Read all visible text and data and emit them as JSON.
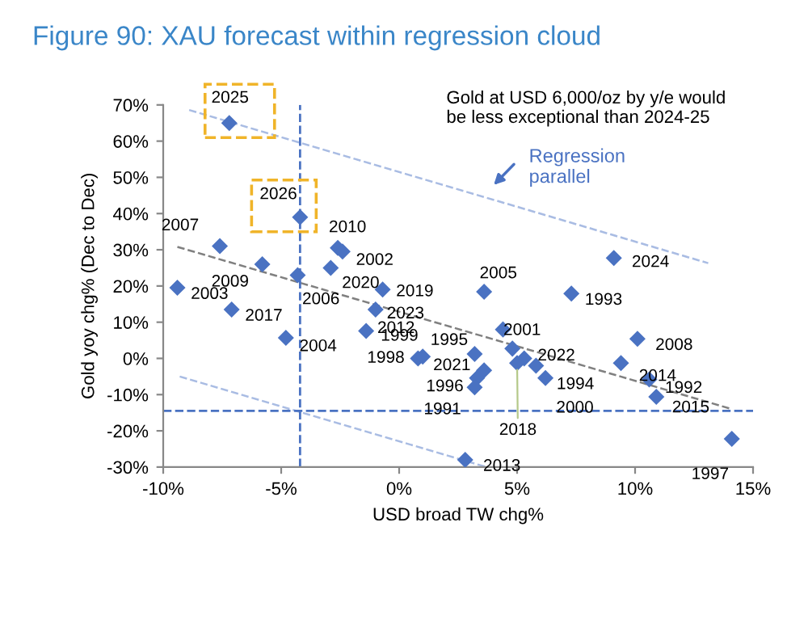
{
  "chart_data": {
    "type": "scatter",
    "title": "Figure 90: XAU forecast within regression cloud",
    "xlabel": "USD broad TW chg%",
    "ylabel": "Gold yoy chg% (Dec to Dec)",
    "xlim": [
      -10,
      15
    ],
    "xticks": [
      {
        "value": -10,
        "label": "-10%"
      },
      {
        "value": -5,
        "label": "-5%"
      },
      {
        "value": 0,
        "label": "0%"
      },
      {
        "value": 5,
        "label": "5%"
      },
      {
        "value": 10,
        "label": "10%"
      },
      {
        "value": 15,
        "label": "15%"
      }
    ],
    "ylim": [
      -30,
      70
    ],
    "yticks": [
      {
        "value": -30,
        "label": "-30%"
      },
      {
        "value": -20,
        "label": "-20%"
      },
      {
        "value": -10,
        "label": "-10%"
      },
      {
        "value": 0,
        "label": "0%"
      },
      {
        "value": 10,
        "label": "10%"
      },
      {
        "value": 20,
        "label": "20%"
      },
      {
        "value": 30,
        "label": "30%"
      },
      {
        "value": 40,
        "label": "40%"
      },
      {
        "value": 50,
        "label": "50%"
      },
      {
        "value": 60,
        "label": "60%"
      },
      {
        "value": 70,
        "label": "70%"
      }
    ],
    "grid": false,
    "legend": false,
    "series": [
      {
        "color": "#4a72c2",
        "marker": "diamond",
        "x": [
          -7.2,
          -4.2,
          -7.6,
          -2.6,
          -2.4,
          -5.8,
          -4.3,
          -2.9,
          -9.4,
          -0.7,
          -7.1,
          -1.0,
          -4.8,
          -1.4,
          4.4,
          3.6,
          7.3,
          0.8,
          1.0,
          3.2,
          4.8,
          5.3,
          5.0,
          5.8,
          6.2,
          3.6,
          3.3,
          3.2,
          9.1,
          10.1,
          9.4,
          10.6,
          10.9,
          14.1,
          2.8
        ],
        "values": [
          65,
          39,
          31,
          30.5,
          29.5,
          26,
          23,
          25,
          19.5,
          19,
          13.5,
          13.5,
          5.7,
          7.6,
          8,
          18.4,
          17.9,
          0,
          0.5,
          1.2,
          2.7,
          0,
          -1.3,
          -2,
          -5.4,
          -3.3,
          -5.4,
          -8,
          27.7,
          5.4,
          -1.3,
          -5.8,
          -10.6,
          -22.2,
          -28
        ]
      },
      {
        "type": "line",
        "color": "#a9bce3",
        "line_style": "dashed",
        "x": [
          -8.9,
          13.1
        ],
        "values": [
          68.6,
          26.3
        ]
      },
      {
        "type": "line",
        "color": "#a9bce3",
        "line_style": "dashed",
        "x": [
          -9.3,
          3.7
        ],
        "values": [
          -5,
          -30
        ]
      },
      {
        "type": "line",
        "color": "#808080",
        "line_style": "dashed",
        "x": [
          -9.4,
          14
        ],
        "values": [
          30.8,
          -13.8
        ]
      }
    ],
    "ref_lines": [
      {
        "axis": "y",
        "value": -14.5,
        "color": "#4a72c2",
        "line_style": "dashed"
      },
      {
        "axis": "x",
        "value": -4.2,
        "color": "#4a72c2",
        "line_style": "dashed"
      }
    ],
    "annotations": [
      "Gold at USD 6,000/oz by y/e would\nbe less exceptional than 2024-25",
      "Regression\nparallel",
      {
        "text": "2025",
        "x": -7.2,
        "y": 65
      },
      {
        "text": "2026",
        "x": -4.2,
        "y": 39
      },
      {
        "text": "2007",
        "x": -7.6,
        "y": 31
      },
      {
        "text": "2010",
        "x": -2.6,
        "y": 30.5
      },
      {
        "text": "2002",
        "x": -2.4,
        "y": 29.5
      },
      {
        "text": "2009",
        "x": -5.8,
        "y": 26
      },
      {
        "text": "2006",
        "x": -4.3,
        "y": 23
      },
      {
        "text": "2020",
        "x": -2.9,
        "y": 25
      },
      {
        "text": "2003",
        "x": -9.4,
        "y": 19.5
      },
      {
        "text": "2019",
        "x": -0.7,
        "y": 19
      },
      {
        "text": "2017",
        "x": -7.1,
        "y": 13.5
      },
      {
        "text": "2023",
        "x": -1.0,
        "y": 13.5
      },
      {
        "text": "2004",
        "x": -4.8,
        "y": 5.7
      },
      {
        "text": "2012",
        "x": -1.4,
        "y": 7.6
      },
      {
        "text": "2005",
        "x": 3.6,
        "y": 18.4
      },
      {
        "text": "1993",
        "x": 7.3,
        "y": 17.9
      },
      {
        "text": "1998",
        "x": 0.8,
        "y": 0
      },
      {
        "text": "1999",
        "x": 1.0,
        "y": 0.5
      },
      {
        "text": "1995",
        "x": 3.2,
        "y": 1.2
      },
      {
        "text": "2001",
        "x": 4.8,
        "y": 2.7
      },
      {
        "text": "2022",
        "x": 5.3,
        "y": 0
      },
      {
        "text": "2018",
        "x": 5.0,
        "y": -1.3
      },
      {
        "text": "2000",
        "x": 5.8,
        "y": -2
      },
      {
        "text": "1994",
        "x": 6.2,
        "y": -5.4
      },
      {
        "text": "2021",
        "x": 3.6,
        "y": -3.3
      },
      {
        "text": "1996",
        "x": 3.3,
        "y": -5.4
      },
      {
        "text": "1991",
        "x": 3.2,
        "y": -8
      },
      {
        "text": "2024",
        "x": 9.1,
        "y": 27.7
      },
      {
        "text": "2008",
        "x": 10.1,
        "y": 5.4
      },
      {
        "text": "2014",
        "x": 9.4,
        "y": -1.3
      },
      {
        "text": "1992",
        "x": 10.6,
        "y": -5.8
      },
      {
        "text": "2015",
        "x": 10.9,
        "y": -10.6
      },
      {
        "text": "1997",
        "x": 14.1,
        "y": -22.2
      },
      {
        "text": "2013",
        "x": 2.8,
        "y": -28
      }
    ]
  }
}
